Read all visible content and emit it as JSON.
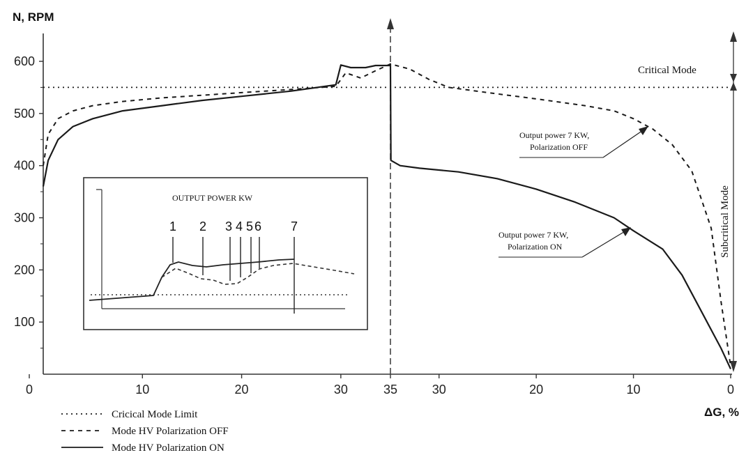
{
  "chart_data": {
    "type": "line",
    "y_axis_label": "N, RPM",
    "x_axis_label": "ΔG, %",
    "y_ticks": [
      100,
      200,
      300,
      400,
      500,
      600
    ],
    "x_ticks_left": [
      "0",
      "10",
      "20",
      "30"
    ],
    "x_tick_center": "35",
    "x_ticks_right": [
      "30",
      "20",
      "10",
      "0"
    ],
    "ylim": [
      0,
      650
    ],
    "series": [
      {
        "name": "Cricical Mode Limit",
        "style": "dotted",
        "left_points": [
          [
            0,
            550
          ],
          [
            35,
            550
          ]
        ],
        "right_points": [
          [
            35,
            550
          ],
          [
            0,
            550
          ]
        ]
      },
      {
        "name": "Mode HV Polarization OFF",
        "style": "dashed",
        "left_points": [
          [
            0,
            400
          ],
          [
            0.5,
            460
          ],
          [
            1.5,
            490
          ],
          [
            3,
            505
          ],
          [
            5,
            515
          ],
          [
            8,
            523
          ],
          [
            12,
            530
          ],
          [
            16,
            535
          ],
          [
            20,
            540
          ],
          [
            25,
            546
          ],
          [
            29.5,
            552
          ],
          [
            30.5,
            578
          ],
          [
            32,
            568
          ],
          [
            33.5,
            582
          ],
          [
            35,
            595
          ]
        ],
        "right_points": [
          [
            35,
            595
          ],
          [
            33,
            585
          ],
          [
            31,
            565
          ],
          [
            29,
            550
          ],
          [
            25,
            540
          ],
          [
            20,
            528
          ],
          [
            15,
            515
          ],
          [
            12,
            505
          ],
          [
            10,
            490
          ],
          [
            8,
            470
          ],
          [
            6,
            440
          ],
          [
            4,
            390
          ],
          [
            2,
            280
          ],
          [
            1,
            140
          ],
          [
            0,
            15
          ]
        ]
      },
      {
        "name": "Mode HV Polarization ON",
        "style": "solid",
        "left_points": [
          [
            0,
            360
          ],
          [
            0.5,
            410
          ],
          [
            1.5,
            450
          ],
          [
            3,
            475
          ],
          [
            5,
            490
          ],
          [
            8,
            505
          ],
          [
            12,
            515
          ],
          [
            16,
            525
          ],
          [
            20,
            533
          ],
          [
            25,
            543
          ],
          [
            29.5,
            555
          ],
          [
            30,
            593
          ],
          [
            31,
            588
          ],
          [
            32.5,
            588
          ],
          [
            33.5,
            592
          ],
          [
            35,
            592
          ]
        ],
        "right_points": [
          [
            35,
            595
          ],
          [
            34.95,
            410
          ],
          [
            34,
            400
          ],
          [
            32,
            395
          ],
          [
            28,
            388
          ],
          [
            24,
            375
          ],
          [
            20,
            355
          ],
          [
            16,
            330
          ],
          [
            12,
            300
          ],
          [
            10,
            275
          ],
          [
            7,
            240
          ],
          [
            5,
            190
          ],
          [
            3,
            120
          ],
          [
            1,
            50
          ],
          [
            0,
            10
          ]
        ]
      }
    ],
    "regions": [
      {
        "label": "Critical Mode"
      },
      {
        "label": "Subcritical Mode"
      }
    ],
    "annotations": [
      {
        "lines": [
          "Output power 7 KW,",
          "Polarization OFF"
        ]
      },
      {
        "lines": [
          "Output power 7 KW,",
          "Polarization ON"
        ]
      }
    ],
    "inset": {
      "title": "OUTPUT POWER KW",
      "markers": [
        "1",
        "2",
        "3",
        "4",
        "5",
        "6",
        "7"
      ]
    },
    "legend": {
      "placement": "bottom-left",
      "entries": [
        "Cricical Mode Limit",
        "Mode HV Polarization OFF",
        "Mode HV Polarization ON"
      ]
    },
    "grid": false
  }
}
